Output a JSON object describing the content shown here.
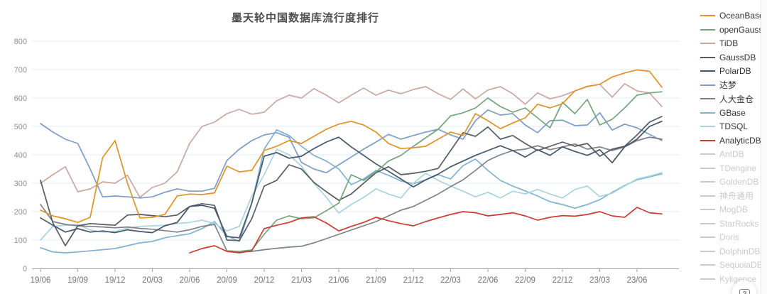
{
  "page": {
    "help_button_label": "?"
  },
  "colors": {
    "background": "#ffffff",
    "grid": "#e3eaf4",
    "axis": "#9aa0a6",
    "x_tick_label": "#6f7479",
    "y_tick_label": "#8b9098",
    "title": "#4c4c4c",
    "legend_active_text": "#333333",
    "legend_inactive": "#c7cacf"
  },
  "chart_data": {
    "type": "line",
    "title": "墨天轮中国数据库流行度排行",
    "x_unit": "month",
    "x_start": "19/06",
    "x_end": "23/08",
    "x_tick_labels": [
      "19/06",
      "19/09",
      "19/12",
      "20/03",
      "20/06",
      "20/09",
      "20/12",
      "21/03",
      "21/06",
      "21/09",
      "21/12",
      "22/03",
      "22/06",
      "22/09",
      "22/12",
      "23/03",
      "23/06"
    ],
    "y_ticks": [
      0,
      100,
      200,
      300,
      400,
      500,
      600,
      700,
      800
    ],
    "ylim": [
      0,
      800
    ],
    "grid": true,
    "legend_position": "right",
    "series": [
      {
        "name": "OceanBase",
        "color": "#de9326",
        "start": 0,
        "values": [
          205,
          185,
          175,
          162,
          180,
          390,
          450,
          300,
          178,
          180,
          190,
          255,
          262,
          260,
          266,
          360,
          340,
          345,
          415,
          430,
          450,
          440,
          465,
          490,
          508,
          518,
          505,
          480,
          440,
          422,
          425,
          430,
          455,
          480,
          468,
          545,
          520,
          492,
          512,
          530,
          578,
          565,
          580,
          625,
          641,
          648,
          674,
          688,
          699,
          694,
          638
        ]
      },
      {
        "name": "openGauss",
        "color": "#74a57a",
        "start": 15,
        "values": [
          62,
          60,
          65,
          120,
          170,
          185,
          175,
          178,
          203,
          230,
          330,
          310,
          340,
          378,
          398,
          430,
          460,
          490,
          537,
          548,
          565,
          600,
          570,
          550,
          565,
          530,
          495,
          585,
          545,
          595,
          505,
          525,
          565,
          610,
          618,
          622
        ]
      },
      {
        "name": "TiDB",
        "color": "#c9a8a0",
        "start": 0,
        "values": [
          300,
          330,
          358,
          270,
          280,
          305,
          300,
          328,
          250,
          285,
          300,
          340,
          440,
          500,
          515,
          545,
          560,
          543,
          550,
          590,
          610,
          600,
          633,
          610,
          583,
          610,
          635,
          610,
          628,
          615,
          630,
          640,
          615,
          595,
          632,
          597,
          628,
          640,
          615,
          578,
          618,
          597,
          608,
          625,
          640,
          648,
          603,
          650,
          625,
          618,
          570
        ]
      },
      {
        "name": "GaussDB",
        "color": "#565b63",
        "start": 0,
        "values": [
          310,
          160,
          80,
          150,
          158,
          155,
          152,
          188,
          190,
          186,
          182,
          188,
          218,
          228,
          222,
          100,
          98,
          175,
          290,
          310,
          365,
          350,
          303,
          270,
          240,
          262,
          300,
          337,
          358,
          330,
          335,
          342,
          352,
          415,
          478,
          465,
          498,
          455,
          468,
          440,
          415,
          430,
          445,
          430,
          440,
          395,
          420,
          430,
          470,
          515,
          535
        ]
      },
      {
        "name": "PolarDB",
        "color": "#44566c",
        "start": 0,
        "values": [
          178,
          152,
          128,
          140,
          128,
          132,
          126,
          136,
          130,
          126,
          150,
          162,
          218,
          222,
          212,
          112,
          108,
          230,
          395,
          408,
          388,
          395,
          422,
          445,
          462,
          428,
          398,
          368,
          342,
          315,
          287,
          312,
          332,
          358,
          378,
          398,
          415,
          432,
          415,
          392,
          418,
          398,
          428,
          412,
          398,
          418,
          372,
          428,
          455,
          500,
          518
        ]
      },
      {
        "name": "达梦",
        "color": "#7d9cc8",
        "start": 0,
        "values": [
          510,
          480,
          455,
          440,
          350,
          252,
          255,
          252,
          248,
          252,
          268,
          280,
          272,
          272,
          282,
          380,
          420,
          450,
          470,
          478,
          462,
          373,
          350,
          337,
          365,
          392,
          420,
          445,
          472,
          455,
          468,
          480,
          490,
          470,
          455,
          520,
          558,
          540,
          545,
          505,
          478,
          520,
          522,
          503,
          505,
          548,
          487,
          508,
          495,
          472,
          450
        ]
      },
      {
        "name": "人大金仓",
        "color": "#7d8187",
        "start": 0,
        "values": [
          225,
          165,
          155,
          150,
          148,
          146,
          143,
          146,
          141,
          138,
          133,
          128,
          136,
          148,
          155,
          62,
          58,
          60,
          66,
          71,
          75,
          78,
          90,
          105,
          120,
          135,
          150,
          165,
          185,
          205,
          218,
          240,
          262,
          288,
          312,
          345,
          380,
          400,
          415,
          420,
          432,
          418,
          428,
          438,
          420,
          428,
          415,
          428,
          450,
          462,
          455
        ]
      },
      {
        "name": "GBase",
        "color": "#7fb2d0",
        "start": 0,
        "values": [
          73,
          58,
          55,
          58,
          62,
          66,
          70,
          80,
          90,
          95,
          108,
          115,
          122,
          140,
          165,
          115,
          95,
          230,
          420,
          488,
          468,
          430,
          398,
          378,
          350,
          295,
          315,
          345,
          328,
          308,
          298,
          312,
          330,
          315,
          362,
          385,
          345,
          310,
          290,
          273,
          255,
          235,
          225,
          212,
          225,
          242,
          268,
          292,
          312,
          322,
          333
        ]
      },
      {
        "name": "TDSQL",
        "color": "#a9d4dd",
        "start": 0,
        "values": [
          100,
          148,
          152,
          155,
          135,
          128,
          130,
          142,
          148,
          150,
          152,
          158,
          162,
          170,
          158,
          132,
          148,
          255,
          330,
          420,
          400,
          360,
          300,
          250,
          195,
          225,
          250,
          280,
          262,
          248,
          300,
          335,
          310,
          290,
          272,
          252,
          268,
          248,
          272,
          262,
          278,
          262,
          248,
          278,
          290,
          253,
          265,
          290,
          315,
          325,
          337
        ]
      },
      {
        "name": "AnalyticDB",
        "color": "#cc3b33",
        "start": 12,
        "values": [
          55,
          70,
          80,
          60,
          55,
          62,
          140,
          152,
          162,
          178,
          182,
          160,
          132,
          148,
          162,
          180,
          168,
          158,
          150,
          165,
          178,
          190,
          200,
          196,
          185,
          190,
          196,
          185,
          170,
          180,
          186,
          184,
          190,
          200,
          185,
          180,
          215,
          196,
          192
        ]
      }
    ],
    "hidden_series": [
      "AntDB",
      "TDengine",
      "GoldenDB",
      "神舟通用",
      "MogDB",
      "StarRocks",
      "Doris",
      "DolphinDB",
      "SequoiaDB",
      "Kyligence"
    ]
  },
  "legend": {
    "items": [
      {
        "label": "OceanBase",
        "color": "#de9326",
        "active": true
      },
      {
        "label": "openGauss",
        "color": "#74a57a",
        "active": true
      },
      {
        "label": "TiDB",
        "color": "#c9a8a0",
        "active": true
      },
      {
        "label": "GaussDB",
        "color": "#565b63",
        "active": true
      },
      {
        "label": "PolarDB",
        "color": "#44566c",
        "active": true
      },
      {
        "label": "达梦",
        "color": "#7d9cc8",
        "active": true
      },
      {
        "label": "人大金仓",
        "color": "#7d8187",
        "active": true
      },
      {
        "label": "GBase",
        "color": "#7fb2d0",
        "active": true
      },
      {
        "label": "TDSQL",
        "color": "#a9d4dd",
        "active": true
      },
      {
        "label": "AnalyticDB",
        "color": "#cc3b33",
        "active": true
      },
      {
        "label": "AntDB",
        "color": "#c7cacf",
        "active": false
      },
      {
        "label": "TDengine",
        "color": "#c7cacf",
        "active": false
      },
      {
        "label": "GoldenDB",
        "color": "#c7cacf",
        "active": false
      },
      {
        "label": "神舟通用",
        "color": "#c7cacf",
        "active": false
      },
      {
        "label": "MogDB",
        "color": "#c7cacf",
        "active": false
      },
      {
        "label": "StarRocks",
        "color": "#c7cacf",
        "active": false
      },
      {
        "label": "Doris",
        "color": "#c7cacf",
        "active": false
      },
      {
        "label": "DolphinDB",
        "color": "#c7cacf",
        "active": false
      },
      {
        "label": "SequoiaDB",
        "color": "#c7cacf",
        "active": false
      },
      {
        "label": "Kyligence",
        "color": "#c7cacf",
        "active": false
      }
    ]
  }
}
